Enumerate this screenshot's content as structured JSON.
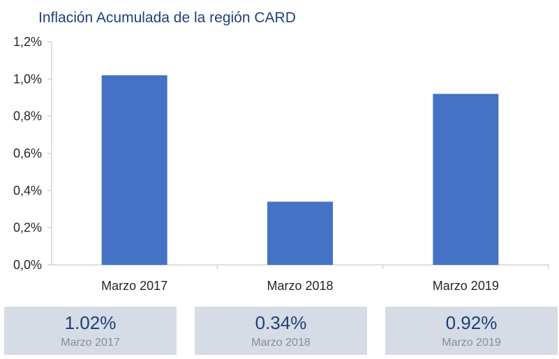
{
  "chart_data": {
    "type": "bar",
    "title": "Inflación Acumulada de la región CARD",
    "categories": [
      "Marzo 2017",
      "Marzo 2018",
      "Marzo 2019"
    ],
    "values": [
      1.02,
      0.34,
      0.92
    ],
    "ylim": [
      0,
      1.2
    ],
    "yticks": [
      "0,0%",
      "0,2%",
      "0,4%",
      "0,6%",
      "0,8%",
      "1,0%",
      "1,2%"
    ],
    "ytick_values": [
      0,
      0.2,
      0.4,
      0.6,
      0.8,
      1.0,
      1.2
    ],
    "bar_color": "#4472c4",
    "grid": false
  },
  "summary_cards": [
    {
      "value": "1.02%",
      "caption": "Marzo 2017"
    },
    {
      "value": "0.34%",
      "caption": "Marzo 2018"
    },
    {
      "value": "0.92%",
      "caption": "Marzo 2019"
    }
  ]
}
